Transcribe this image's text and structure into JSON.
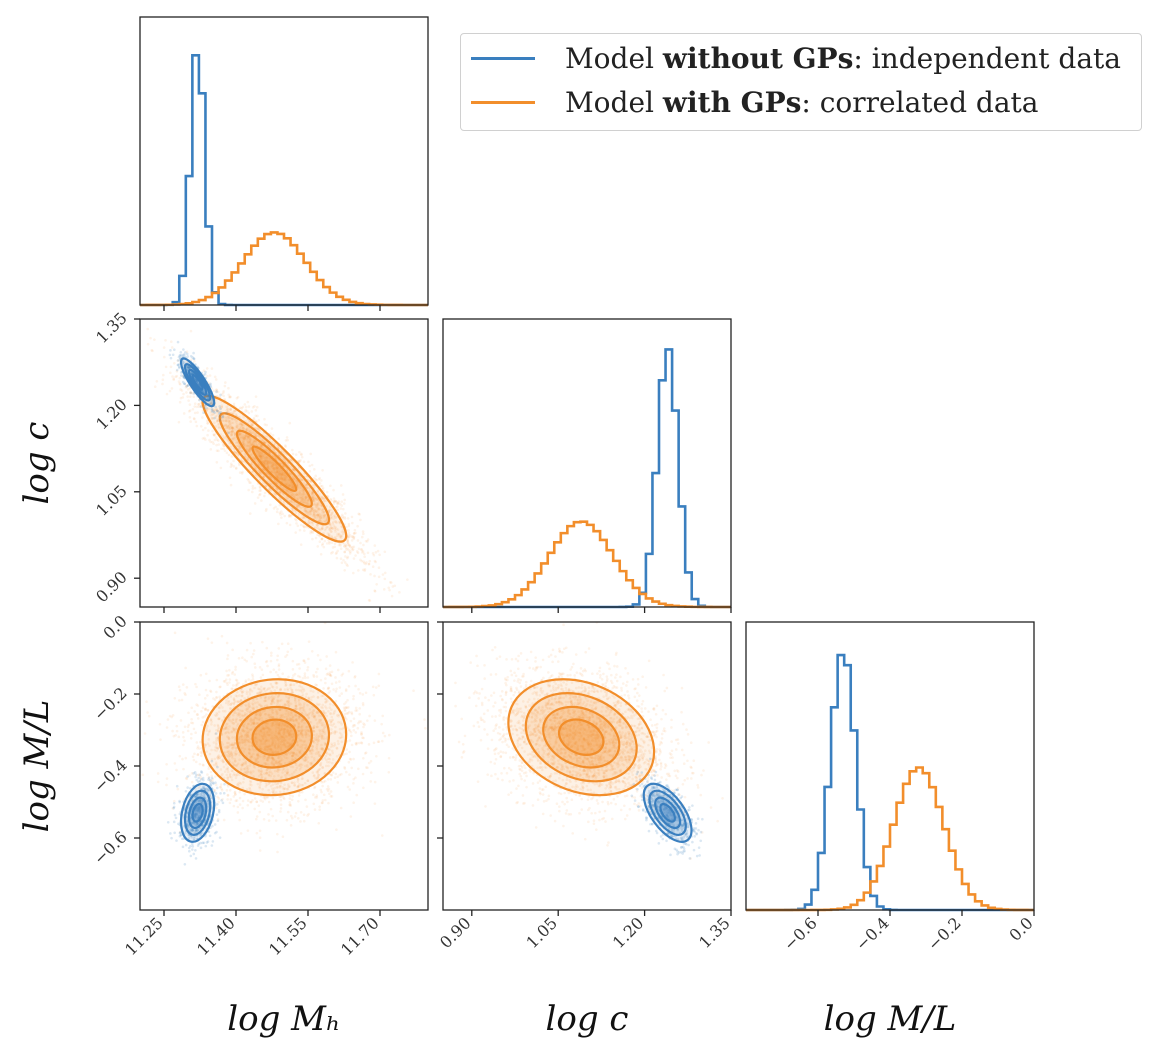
{
  "legend": {
    "entries": [
      {
        "prefix": "Model ",
        "bold": "without GPs",
        "suffix": " :  independent data",
        "color": "#3a7fbf"
      },
      {
        "prefix": "Model ",
        "bold": "with GPs",
        "suffix": " :  correlated data",
        "color": "#f28e2b"
      }
    ]
  },
  "chart_data": {
    "type": "corner",
    "parameters": [
      {
        "label": "log M_h",
        "display": "log Mₕ",
        "range": [
          11.2,
          11.8
        ],
        "ticks": [
          "11.25",
          "11.40",
          "11.55",
          "11.70"
        ]
      },
      {
        "label": "log c",
        "display": "log c",
        "range": [
          0.85,
          1.35
        ],
        "ticks": [
          "0.90",
          "1.05",
          "1.20",
          "1.35"
        ]
      },
      {
        "label": "log M/L",
        "display": "log M/L",
        "range": [
          -0.8,
          0.0
        ],
        "ticks": [
          "−0.6",
          "−0.4",
          "−0.2",
          "0.0"
        ]
      }
    ],
    "series": [
      {
        "name": "Model without GPs : independent data",
        "color": "#3a7fbf",
        "means": [
          11.32,
          1.24,
          -0.53
        ],
        "sigmas": [
          0.015,
          0.018,
          0.035
        ],
        "correlations": {
          "0-1": -0.85,
          "0-2": 0.3,
          "1-2": -0.6
        },
        "marginal_peak_heights": [
          1.0,
          1.0,
          1.0
        ]
      },
      {
        "name": "Model with GPs : correlated data",
        "color": "#f28e2b",
        "means": [
          11.48,
          1.09,
          -0.32
        ],
        "sigmas": [
          0.065,
          0.055,
          0.07
        ],
        "correlations": {
          "0-1": -0.92,
          "0-2": 0.05,
          "1-2": -0.25
        },
        "marginal_peak_heights": [
          0.28,
          0.33,
          0.55
        ]
      }
    ],
    "grid": false
  }
}
